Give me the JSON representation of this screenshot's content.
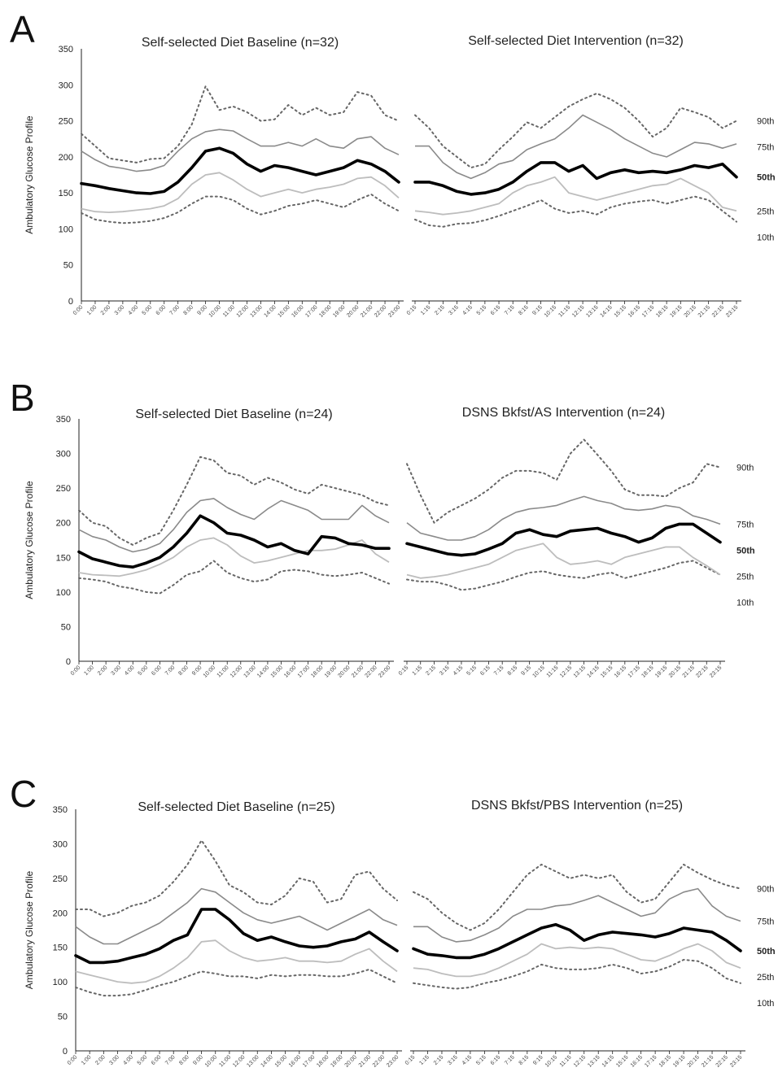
{
  "y_axis_label": "Ambulatory Glucose Profile",
  "y_ticks": [
    "0",
    "50",
    "100",
    "150",
    "200",
    "250",
    "300",
    "350"
  ],
  "percentiles": [
    "90th",
    "75th",
    "50th",
    "25th",
    "10th"
  ],
  "colors": {
    "p10_p90": "#666666",
    "p25_p75": "#8a8a8a",
    "p25_light": "#bdbdbd",
    "median": "#000000"
  },
  "panels": [
    {
      "letter": "A",
      "left_title": "Self-selected Diet Baseline (n=32)",
      "right_title": "Self-selected Diet Intervention (n=32)"
    },
    {
      "letter": "B",
      "left_title": "Self-selected Diet Baseline  (n=24)",
      "right_title": "DSNS Bkfst/AS Intervention (n=24)"
    },
    {
      "letter": "C",
      "left_title": "Self-selected Diet Baseline (n=25)",
      "right_title": "DSNS Bkfst/PBS Intervention (n=25)"
    }
  ],
  "chart_data": [
    {
      "type": "line",
      "title": "Self-selected Diet Baseline (n=32)",
      "ylabel": "Ambulatory Glucose Profile",
      "ylim": [
        0,
        350
      ],
      "x": [
        "0:00",
        "1:00",
        "2:00",
        "3:00",
        "4:00",
        "5:00",
        "6:00",
        "7:00",
        "8:00",
        "9:00",
        "10:00",
        "11:00",
        "12:00",
        "13:00",
        "14:00",
        "15:00",
        "16:00",
        "17:00",
        "18:00",
        "19:00",
        "20:00",
        "21:00",
        "22:00",
        "23:00"
      ],
      "series": [
        {
          "name": "90th",
          "values": [
            232,
            215,
            198,
            195,
            192,
            197,
            198,
            215,
            245,
            298,
            265,
            270,
            262,
            250,
            252,
            272,
            258,
            268,
            258,
            262,
            290,
            285,
            258,
            250
          ]
        },
        {
          "name": "75th",
          "values": [
            208,
            196,
            187,
            184,
            180,
            182,
            188,
            208,
            225,
            235,
            238,
            236,
            225,
            215,
            215,
            220,
            215,
            225,
            215,
            212,
            225,
            228,
            212,
            203
          ]
        },
        {
          "name": "50th",
          "values": [
            163,
            160,
            156,
            153,
            150,
            149,
            152,
            165,
            185,
            208,
            212,
            205,
            190,
            180,
            188,
            185,
            180,
            175,
            180,
            185,
            195,
            190,
            180,
            165
          ]
        },
        {
          "name": "25th",
          "values": [
            128,
            124,
            123,
            124,
            126,
            128,
            132,
            142,
            162,
            175,
            178,
            168,
            155,
            145,
            150,
            155,
            150,
            155,
            158,
            162,
            170,
            172,
            160,
            143
          ]
        },
        {
          "name": "10th",
          "values": [
            122,
            113,
            110,
            108,
            109,
            111,
            115,
            123,
            135,
            145,
            145,
            140,
            128,
            120,
            125,
            132,
            135,
            140,
            135,
            130,
            140,
            148,
            135,
            125
          ]
        }
      ]
    },
    {
      "type": "line",
      "title": "Self-selected Diet Intervention (n=32)",
      "ylim": [
        0,
        350
      ],
      "x": [
        "0:15",
        "1:15",
        "2:15",
        "3:15",
        "4:15",
        "5:15",
        "6:15",
        "7:15",
        "8:15",
        "9:15",
        "10:15",
        "11:15",
        "12:15",
        "13:15",
        "14:15",
        "15:15",
        "16:15",
        "17:15",
        "18:15",
        "19:15",
        "20:15",
        "21:15",
        "22:15",
        "23:15"
      ],
      "series": [
        {
          "name": "90th",
          "values": [
            258,
            240,
            215,
            200,
            185,
            190,
            210,
            228,
            248,
            240,
            255,
            270,
            280,
            288,
            280,
            268,
            250,
            228,
            240,
            268,
            262,
            255,
            240,
            250
          ]
        },
        {
          "name": "75th",
          "values": [
            215,
            215,
            192,
            178,
            170,
            178,
            190,
            195,
            210,
            218,
            225,
            240,
            258,
            248,
            238,
            225,
            215,
            205,
            200,
            210,
            220,
            218,
            212,
            218
          ]
        },
        {
          "name": "50th",
          "values": [
            165,
            165,
            160,
            152,
            148,
            150,
            155,
            165,
            180,
            192,
            192,
            180,
            188,
            170,
            178,
            182,
            178,
            180,
            178,
            182,
            188,
            185,
            190,
            172
          ]
        },
        {
          "name": "25th",
          "values": [
            125,
            123,
            120,
            122,
            125,
            130,
            135,
            150,
            160,
            165,
            172,
            150,
            145,
            140,
            145,
            150,
            155,
            160,
            162,
            170,
            160,
            150,
            130,
            125
          ]
        },
        {
          "name": "10th",
          "values": [
            113,
            105,
            103,
            107,
            108,
            112,
            118,
            125,
            132,
            140,
            128,
            122,
            125,
            120,
            130,
            135,
            138,
            140,
            135,
            140,
            145,
            140,
            125,
            110
          ]
        }
      ]
    },
    {
      "type": "line",
      "title": "Self-selected Diet Baseline  (n=24)",
      "ylabel": "Ambulatory Glucose Profile",
      "ylim": [
        0,
        350
      ],
      "x": [
        "0:00",
        "1:00",
        "2:00",
        "3:00",
        "4:00",
        "5:00",
        "6:00",
        "7:00",
        "8:00",
        "9:00",
        "10:00",
        "11:00",
        "12:00",
        "13:00",
        "14:00",
        "15:00",
        "16:00",
        "17:00",
        "18:00",
        "19:00",
        "20:00",
        "21:00",
        "22:00",
        "23:00"
      ],
      "series": [
        {
          "name": "90th",
          "values": [
            218,
            200,
            195,
            178,
            168,
            178,
            185,
            218,
            255,
            295,
            290,
            272,
            268,
            255,
            265,
            258,
            248,
            242,
            255,
            250,
            245,
            240,
            230,
            225
          ]
        },
        {
          "name": "75th",
          "values": [
            190,
            180,
            175,
            165,
            158,
            162,
            170,
            190,
            215,
            232,
            235,
            222,
            212,
            205,
            220,
            232,
            225,
            218,
            205,
            205,
            205,
            225,
            210,
            200
          ]
        },
        {
          "name": "50th",
          "values": [
            158,
            148,
            143,
            138,
            136,
            142,
            150,
            165,
            185,
            210,
            200,
            185,
            182,
            175,
            165,
            170,
            160,
            155,
            180,
            178,
            170,
            168,
            163,
            163
          ]
        },
        {
          "name": "25th",
          "values": [
            128,
            125,
            124,
            123,
            127,
            132,
            140,
            150,
            165,
            175,
            178,
            168,
            152,
            142,
            145,
            150,
            155,
            160,
            160,
            162,
            168,
            175,
            155,
            143
          ]
        },
        {
          "name": "10th",
          "values": [
            120,
            118,
            115,
            108,
            105,
            100,
            98,
            110,
            125,
            130,
            145,
            128,
            120,
            115,
            118,
            130,
            132,
            130,
            125,
            123,
            125,
            128,
            120,
            112
          ]
        }
      ]
    },
    {
      "type": "line",
      "title": "DSNS Bkfst/AS Intervention (n=24)",
      "ylim": [
        0,
        350
      ],
      "x": [
        "0:15",
        "1:15",
        "2:15",
        "3:15",
        "4:15",
        "5:15",
        "6:15",
        "7:15",
        "8:15",
        "9:15",
        "10:15",
        "11:15",
        "12:15",
        "13:15",
        "14:15",
        "15:15",
        "16:15",
        "17:15",
        "18:15",
        "19:15",
        "20:15",
        "21:15",
        "22:15",
        "23:15"
      ],
      "series": [
        {
          "name": "90th",
          "values": [
            285,
            240,
            200,
            215,
            225,
            235,
            248,
            265,
            275,
            275,
            272,
            262,
            300,
            320,
            298,
            275,
            248,
            240,
            240,
            238,
            250,
            258,
            285,
            280
          ]
        },
        {
          "name": "75th",
          "values": [
            200,
            185,
            180,
            175,
            175,
            180,
            190,
            205,
            215,
            220,
            222,
            225,
            232,
            238,
            232,
            228,
            220,
            218,
            220,
            225,
            222,
            210,
            205,
            198
          ]
        },
        {
          "name": "50th",
          "values": [
            170,
            165,
            160,
            155,
            153,
            155,
            162,
            170,
            185,
            190,
            183,
            180,
            188,
            190,
            192,
            185,
            180,
            172,
            178,
            192,
            198,
            198,
            185,
            172
          ]
        },
        {
          "name": "25th",
          "values": [
            125,
            120,
            122,
            125,
            130,
            135,
            140,
            150,
            160,
            165,
            170,
            150,
            140,
            142,
            145,
            140,
            150,
            155,
            160,
            165,
            165,
            150,
            138,
            125
          ]
        },
        {
          "name": "10th",
          "values": [
            118,
            115,
            115,
            110,
            103,
            105,
            110,
            115,
            122,
            128,
            130,
            125,
            122,
            120,
            125,
            128,
            120,
            125,
            130,
            135,
            142,
            145,
            135,
            125
          ]
        }
      ]
    },
    {
      "type": "line",
      "title": "Self-selected Diet Baseline (n=25)",
      "ylabel": "Ambulatory Glucose Profile",
      "ylim": [
        0,
        350
      ],
      "x": [
        "0:00",
        "1:00",
        "2:00",
        "3:00",
        "4:00",
        "5:00",
        "6:00",
        "7:00",
        "8:00",
        "9:00",
        "10:00",
        "11:00",
        "12:00",
        "13:00",
        "14:00",
        "15:00",
        "16:00",
        "17:00",
        "18:00",
        "19:00",
        "20:00",
        "21:00",
        "22:00",
        "23:00"
      ],
      "series": [
        {
          "name": "90th",
          "values": [
            205,
            205,
            195,
            200,
            210,
            215,
            225,
            245,
            270,
            305,
            275,
            240,
            230,
            215,
            212,
            225,
            250,
            245,
            215,
            220,
            255,
            260,
            235,
            218
          ]
        },
        {
          "name": "75th",
          "values": [
            180,
            165,
            155,
            155,
            165,
            175,
            185,
            200,
            215,
            235,
            230,
            215,
            200,
            190,
            185,
            190,
            195,
            185,
            175,
            185,
            195,
            205,
            190,
            182
          ]
        },
        {
          "name": "50th",
          "values": [
            138,
            128,
            128,
            130,
            135,
            140,
            148,
            160,
            168,
            205,
            205,
            190,
            170,
            160,
            165,
            158,
            152,
            150,
            152,
            158,
            162,
            172,
            158,
            145
          ]
        },
        {
          "name": "25th",
          "values": [
            115,
            110,
            105,
            100,
            98,
            100,
            108,
            120,
            135,
            158,
            160,
            145,
            135,
            130,
            132,
            135,
            130,
            130,
            128,
            130,
            140,
            148,
            130,
            115
          ]
        },
        {
          "name": "10th",
          "values": [
            92,
            85,
            80,
            80,
            82,
            88,
            95,
            100,
            108,
            115,
            112,
            108,
            108,
            105,
            110,
            108,
            110,
            110,
            108,
            108,
            112,
            118,
            108,
            98
          ]
        }
      ]
    },
    {
      "type": "line",
      "title": "DSNS Bkfst/PBS Intervention (n=25)",
      "ylim": [
        0,
        350
      ],
      "x": [
        "0:15",
        "1:15",
        "2:15",
        "3:15",
        "4:15",
        "5:15",
        "6:15",
        "7:15",
        "8:15",
        "9:15",
        "10:15",
        "11:15",
        "12:15",
        "13:15",
        "14:15",
        "15:15",
        "16:15",
        "17:15",
        "18:15",
        "19:15",
        "20:15",
        "21:15",
        "22:15",
        "23:15"
      ],
      "series": [
        {
          "name": "90th",
          "values": [
            230,
            220,
            200,
            185,
            175,
            185,
            205,
            230,
            255,
            270,
            260,
            250,
            255,
            250,
            255,
            230,
            215,
            220,
            245,
            270,
            258,
            248,
            240,
            235
          ]
        },
        {
          "name": "75th",
          "values": [
            180,
            180,
            165,
            158,
            160,
            168,
            178,
            195,
            205,
            205,
            210,
            212,
            218,
            225,
            215,
            205,
            195,
            200,
            220,
            230,
            235,
            210,
            195,
            188
          ]
        },
        {
          "name": "50th",
          "values": [
            148,
            140,
            138,
            135,
            135,
            140,
            148,
            158,
            168,
            178,
            183,
            175,
            160,
            168,
            172,
            170,
            168,
            165,
            170,
            178,
            175,
            172,
            160,
            145
          ]
        },
        {
          "name": "25th",
          "values": [
            120,
            118,
            112,
            108,
            108,
            112,
            120,
            130,
            140,
            155,
            148,
            150,
            148,
            150,
            148,
            140,
            132,
            130,
            138,
            148,
            155,
            145,
            128,
            120
          ]
        },
        {
          "name": "10th",
          "values": [
            98,
            95,
            92,
            90,
            92,
            98,
            102,
            108,
            115,
            125,
            120,
            118,
            118,
            120,
            125,
            120,
            112,
            115,
            122,
            132,
            130,
            120,
            105,
            98
          ]
        }
      ]
    }
  ]
}
